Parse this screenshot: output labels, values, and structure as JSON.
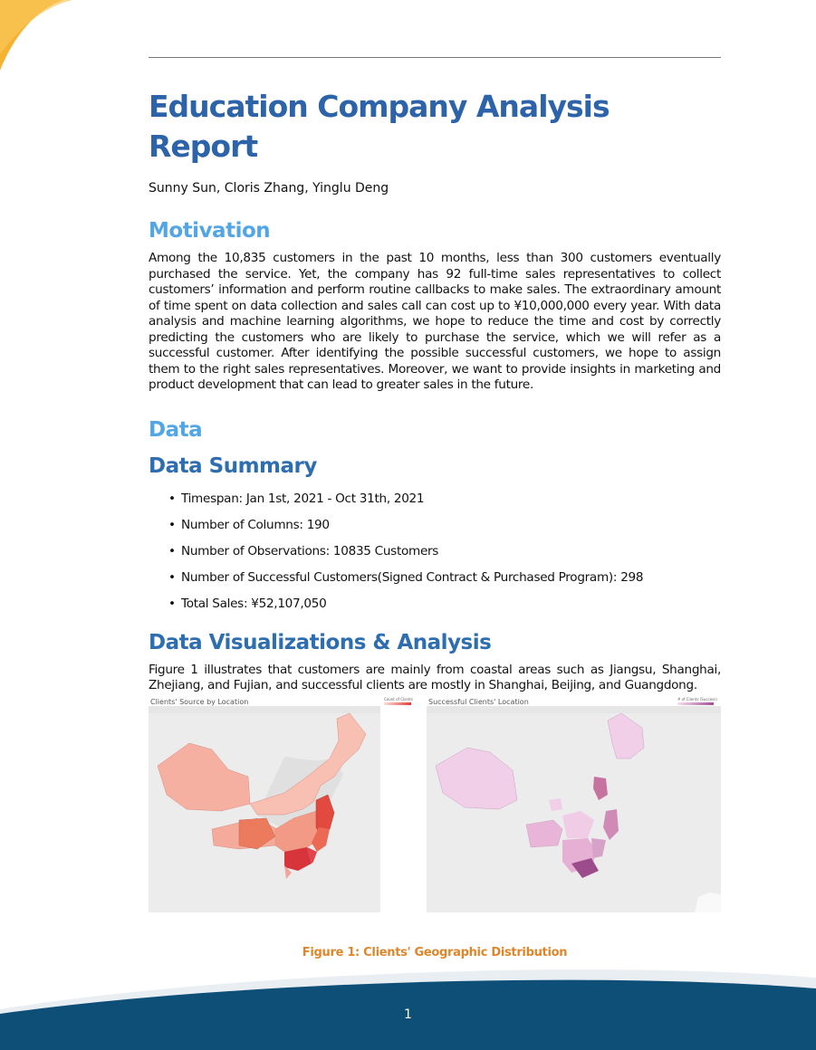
{
  "document": {
    "title": "Education Company Analysis Report",
    "authors": "Sunny Sun, Cloris Zhang, Yinglu Deng",
    "page_number": "1"
  },
  "motivation": {
    "heading": "Motivation",
    "text": "Among the 10,835 customers in the past 10 months, less than 300 customers eventually purchased the service. Yet, the company has 92 full-time sales representatives to collect customers’ information and perform routine callbacks to make sales.  The extraordinary amount of time spent on data collection and sales call can cost up to ¥10,000,000 every year. With data analysis and machine learning algorithms, we hope to reduce the time and cost by correctly predicting the customers who are likely to purchase the service, which we will refer as a successful customer. After identifying the possible successful customers, we hope to assign them to the right sales representatives. Moreover, we want to provide insights in marketing and product development that can lead to greater sales in the future."
  },
  "data": {
    "heading": "Data",
    "summary_heading": "Data Summary",
    "bullet": "•",
    "summary_items": [
      "Timespan:  Jan 1st, 2021 - Oct 31th, 2021",
      "Number of Columns: 190",
      "Number of Observations: 10835 Customers",
      "Number of Successful Customers(Signed Contract & Purchased Program): 298",
      "Total Sales: ¥52,107,050"
    ]
  },
  "visualizations": {
    "heading": "Data Visualizations & Analysis",
    "text": "Figure 1 illustrates that customers are mainly from coastal areas such as Jiangsu, Shanghai, Zhejiang, and Fujian, and successful clients are mostly in Shanghai, Beijing, and Guangdong.",
    "figure": {
      "left_title": "Clients' Source by Location",
      "left_legend": "Count of Clients",
      "right_title": "Successful Clients' Location",
      "right_legend": "# of Clients (Success)",
      "caption": "Figure 1: Clients' Geographic Distribution"
    }
  },
  "colors": {
    "title_blue": "#2d63a8",
    "heading_light_blue": "#52a6e6",
    "heading_dark_blue": "#2d6db0",
    "caption_orange": "#e0862a",
    "footer_navy": "#0e4f78",
    "corner_yellow": "#f6b331",
    "map_red": "#e23b3b",
    "map_purple": "#a44f96"
  }
}
